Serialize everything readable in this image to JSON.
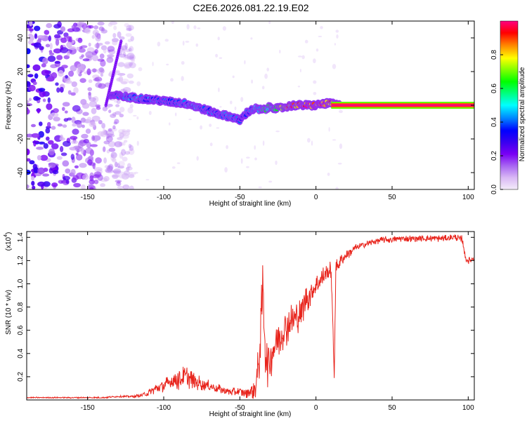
{
  "figure_title": "C2E6.2026.081.22.19.E02",
  "chart_data": [
    {
      "type": "heatmap",
      "title": "C2E6.2026.081.22.19.E02",
      "xlabel": "Height of straight line (km)",
      "ylabel": "Frequency (Hz)",
      "xlim": [
        -190,
        104
      ],
      "ylim": [
        -50,
        50
      ],
      "xticks": [
        -150,
        -100,
        -50,
        0,
        50,
        100
      ],
      "xtick_labels": [
        "-150",
        "-100",
        "-50",
        "0",
        "50",
        "100"
      ],
      "yticks": [
        -40,
        -20,
        0,
        20,
        40
      ],
      "ytick_labels": [
        "-40",
        "-20",
        "0",
        "20",
        "40"
      ],
      "colormap": [
        "#f4ecfa",
        "#d9b8f5",
        "#a866f2",
        "#7a00f4",
        "#3a00f0",
        "#0000ff",
        "#0080ff",
        "#00ffff",
        "#00ff80",
        "#00ff00",
        "#80ff00",
        "#ffff00",
        "#ff8000",
        "#ff0000",
        "#ff0080"
      ],
      "colorbar": {
        "label": "Normalized spectral amplitude",
        "range": [
          0,
          1
        ],
        "ticks": [
          0.0,
          0.2,
          0.4,
          0.6,
          0.8
        ],
        "tick_labels": [
          "0.0",
          "0.2",
          "0.4",
          "0.6",
          "0.8"
        ]
      },
      "noise_region_x": [
        -190,
        -120
      ],
      "ridge": {
        "description": "dominant frequency track",
        "x": [
          -135,
          -125,
          -115,
          -105,
          -95,
          -85,
          -75,
          -65,
          -55,
          -50,
          -45,
          -40,
          -35,
          -30,
          -25,
          -20,
          -15,
          -10,
          -5,
          0,
          5,
          10,
          15,
          104
        ],
        "freq_hz": [
          6,
          5,
          4,
          3,
          2,
          1,
          -2,
          -5,
          -7,
          -9,
          -4,
          -2,
          -3,
          -1,
          -2,
          -1,
          0,
          0,
          0,
          0,
          1,
          1,
          0,
          0
        ],
        "amplitude": [
          0.35,
          0.45,
          0.45,
          0.4,
          0.4,
          0.45,
          0.45,
          0.4,
          0.45,
          0.4,
          0.4,
          0.5,
          0.55,
          0.6,
          0.7,
          0.8,
          0.9,
          0.95,
          1.0,
          1.0,
          0.95,
          0.9,
          1.0,
          1.0
        ]
      },
      "chirp_streak": {
        "x": [
          -138,
          -128
        ],
        "freq_hz": [
          0,
          38
        ]
      },
      "steady_tone": {
        "x": [
          10,
          104
        ],
        "freq_hz": 0,
        "amplitude": 1.0
      }
    },
    {
      "type": "line",
      "title": "",
      "xlabel": "Height of straight line (km)",
      "ylabel": "SNR (10 * v/v)",
      "y_multiplier_label": "(x10",
      "y_multiplier_exp": "4",
      "y_multiplier_close": ")",
      "xlim": [
        -190,
        104
      ],
      "ylim": [
        0,
        1.45
      ],
      "xticks": [
        -150,
        -100,
        -50,
        0,
        50,
        100
      ],
      "xtick_labels": [
        "-150",
        "-100",
        "-50",
        "0",
        "50",
        "100"
      ],
      "yticks": [
        0.2,
        0.4,
        0.6,
        0.8,
        1.0,
        1.2,
        1.4
      ],
      "ytick_labels": [
        "0.2",
        "0.4",
        "0.6",
        "0.8",
        "1.0",
        "1.2",
        "1.4"
      ],
      "series": [
        {
          "name": "SNR",
          "color": "#e8241c",
          "x": [
            -190,
            -180,
            -170,
            -160,
            -150,
            -140,
            -130,
            -120,
            -115,
            -110,
            -105,
            -100,
            -95,
            -90,
            -85,
            -80,
            -75,
            -70,
            -65,
            -60,
            -55,
            -50,
            -45,
            -40,
            -38,
            -36,
            -35,
            -34,
            -33,
            -32,
            -30,
            -28,
            -26,
            -24,
            -22,
            -20,
            -18,
            -16,
            -14,
            -12,
            -10,
            -8,
            -6,
            -4,
            -2,
            0,
            2,
            4,
            6,
            8,
            10,
            12,
            13,
            14,
            16,
            18,
            20,
            25,
            30,
            35,
            40,
            45,
            50,
            55,
            60,
            65,
            70,
            75,
            80,
            85,
            90,
            92,
            94,
            95,
            96,
            97,
            98,
            100,
            104
          ],
          "y": [
            0.02,
            0.02,
            0.02,
            0.02,
            0.02,
            0.02,
            0.03,
            0.03,
            0.04,
            0.06,
            0.1,
            0.12,
            0.16,
            0.18,
            0.2,
            0.16,
            0.14,
            0.12,
            0.1,
            0.08,
            0.07,
            0.07,
            0.06,
            0.1,
            0.25,
            0.6,
            1.0,
            0.7,
            0.4,
            0.3,
            0.35,
            0.45,
            0.5,
            0.55,
            0.6,
            0.62,
            0.65,
            0.68,
            0.7,
            0.72,
            0.75,
            0.82,
            0.88,
            0.9,
            0.95,
            0.98,
            1.02,
            1.05,
            1.08,
            1.1,
            1.12,
            0.2,
            1.12,
            1.15,
            1.2,
            1.22,
            1.25,
            1.3,
            1.33,
            1.35,
            1.37,
            1.38,
            1.38,
            1.39,
            1.39,
            1.39,
            1.39,
            1.39,
            1.39,
            1.39,
            1.4,
            1.4,
            1.39,
            1.38,
            1.38,
            1.33,
            1.22,
            1.2,
            1.22
          ],
          "spread": [
            0.005,
            0.005,
            0.005,
            0.006,
            0.006,
            0.007,
            0.008,
            0.01,
            0.015,
            0.03,
            0.05,
            0.06,
            0.08,
            0.1,
            0.1,
            0.08,
            0.06,
            0.05,
            0.04,
            0.04,
            0.04,
            0.04,
            0.05,
            0.1,
            0.2,
            0.3,
            0.3,
            0.3,
            0.25,
            0.2,
            0.2,
            0.2,
            0.2,
            0.2,
            0.18,
            0.18,
            0.16,
            0.16,
            0.15,
            0.15,
            0.14,
            0.14,
            0.12,
            0.12,
            0.12,
            0.1,
            0.1,
            0.1,
            0.08,
            0.08,
            0.08,
            0.05,
            0.08,
            0.07,
            0.06,
            0.05,
            0.05,
            0.04,
            0.03,
            0.03,
            0.03,
            0.03,
            0.03,
            0.03,
            0.03,
            0.03,
            0.03,
            0.03,
            0.03,
            0.03,
            0.03,
            0.03,
            0.03,
            0.04,
            0.04,
            0.04,
            0.03,
            0.03,
            0.03
          ]
        }
      ]
    }
  ]
}
